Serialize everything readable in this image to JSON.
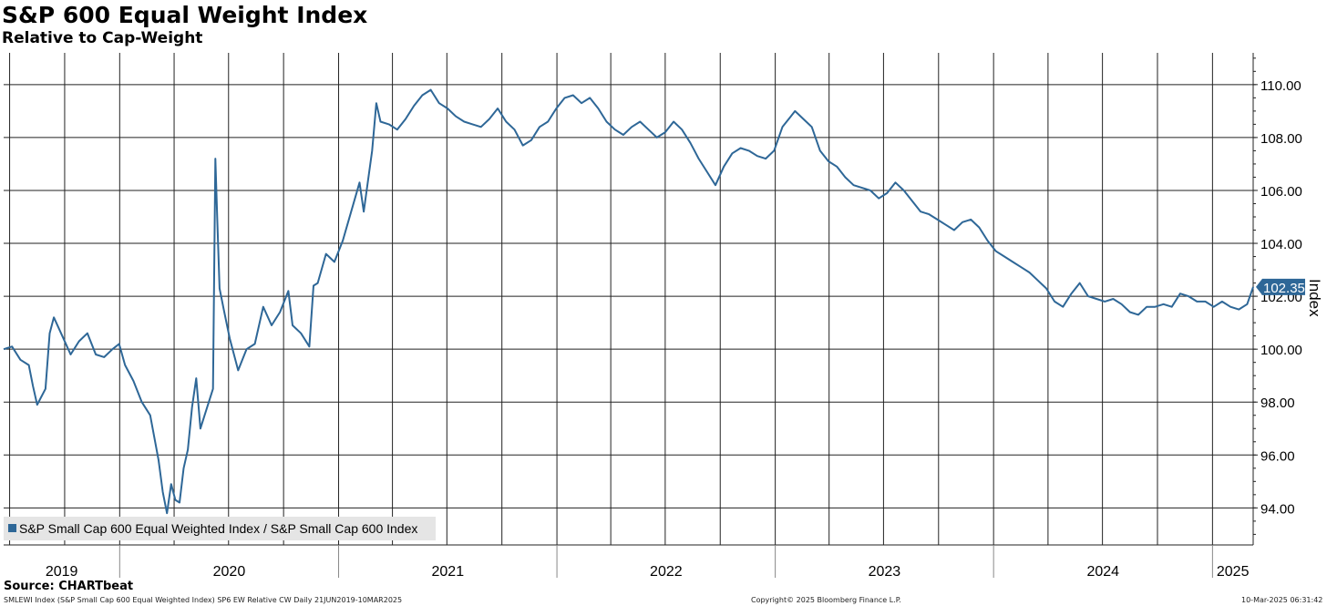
{
  "title": "S&P 600 Equal Weight Index",
  "subtitle": "Relative to Cap-Weight",
  "source": "Source: CHARTbeat",
  "footer": {
    "left": "SMLEWI Index (S&P Small Cap 600 Equal Weighted Index) SP6 EW Relative CW  Daily 21JUN2019-10MAR2025",
    "center": "Copyright© 2025 Bloomberg Finance L.P.",
    "right": "10-Mar-2025 06:31:42"
  },
  "colors": {
    "line": "#2e6797",
    "grid": "#222222",
    "badge": "#2e6797",
    "legend_bg": "#e5e5e5"
  },
  "chart_data": {
    "type": "line",
    "title": "S&P 600 Equal Weight Index",
    "subtitle": "Relative to Cap-Weight",
    "ylabel": "Index",
    "ylim": [
      92.6,
      111.2
    ],
    "xlim": [
      "2019-06-21",
      "2025-03-10"
    ],
    "y_ticks": [
      "94.00",
      "96.00",
      "98.00",
      "100.00",
      "102.00",
      "104.00",
      "106.00",
      "108.00",
      "110.00"
    ],
    "x_year_labels": [
      "2019",
      "2020",
      "2021",
      "2022",
      "2023",
      "2024",
      "2025"
    ],
    "grid": true,
    "legend_position": "bottom-left",
    "last_value_label": "102.35",
    "series": [
      {
        "name": "S&P Small Cap 600 Equal Weighted Index / S&P Small Cap 600 Index",
        "points": [
          [
            "2019-06-21",
            100.0
          ],
          [
            "2019-07-05",
            100.1
          ],
          [
            "2019-07-19",
            99.6
          ],
          [
            "2019-08-02",
            99.4
          ],
          [
            "2019-08-09",
            98.6
          ],
          [
            "2019-08-16",
            97.9
          ],
          [
            "2019-08-30",
            98.5
          ],
          [
            "2019-09-06",
            100.6
          ],
          [
            "2019-09-13",
            101.2
          ],
          [
            "2019-09-27",
            100.5
          ],
          [
            "2019-10-11",
            99.8
          ],
          [
            "2019-10-25",
            100.3
          ],
          [
            "2019-11-08",
            100.6
          ],
          [
            "2019-11-22",
            99.8
          ],
          [
            "2019-12-06",
            99.7
          ],
          [
            "2019-12-20",
            100.0
          ],
          [
            "2019-12-31",
            100.2
          ],
          [
            "2020-01-10",
            99.4
          ],
          [
            "2020-01-24",
            98.8
          ],
          [
            "2020-02-07",
            98.0
          ],
          [
            "2020-02-21",
            97.5
          ],
          [
            "2020-03-06",
            95.8
          ],
          [
            "2020-03-13",
            94.6
          ],
          [
            "2020-03-20",
            93.8
          ],
          [
            "2020-03-27",
            94.9
          ],
          [
            "2020-04-03",
            94.3
          ],
          [
            "2020-04-10",
            94.2
          ],
          [
            "2020-04-17",
            95.5
          ],
          [
            "2020-04-24",
            96.2
          ],
          [
            "2020-05-01",
            97.8
          ],
          [
            "2020-05-08",
            98.9
          ],
          [
            "2020-05-15",
            97.0
          ],
          [
            "2020-05-22",
            97.5
          ],
          [
            "2020-05-29",
            98.0
          ],
          [
            "2020-06-05",
            98.5
          ],
          [
            "2020-06-09",
            107.2
          ],
          [
            "2020-06-12",
            105.0
          ],
          [
            "2020-06-16",
            102.3
          ],
          [
            "2020-06-23",
            101.5
          ],
          [
            "2020-07-03",
            100.4
          ],
          [
            "2020-07-17",
            99.2
          ],
          [
            "2020-07-31",
            100.0
          ],
          [
            "2020-08-14",
            100.2
          ],
          [
            "2020-08-28",
            101.6
          ],
          [
            "2020-09-11",
            100.9
          ],
          [
            "2020-09-25",
            101.4
          ],
          [
            "2020-10-09",
            102.2
          ],
          [
            "2020-10-16",
            100.9
          ],
          [
            "2020-10-30",
            100.6
          ],
          [
            "2020-11-13",
            100.1
          ],
          [
            "2020-11-20",
            102.4
          ],
          [
            "2020-11-27",
            102.5
          ],
          [
            "2020-12-11",
            103.6
          ],
          [
            "2020-12-25",
            103.3
          ],
          [
            "2021-01-08",
            104.1
          ],
          [
            "2021-01-22",
            105.2
          ],
          [
            "2021-02-05",
            106.3
          ],
          [
            "2021-02-12",
            105.2
          ],
          [
            "2021-02-26",
            107.5
          ],
          [
            "2021-03-05",
            109.3
          ],
          [
            "2021-03-12",
            108.6
          ],
          [
            "2021-03-26",
            108.5
          ],
          [
            "2021-04-09",
            108.3
          ],
          [
            "2021-04-23",
            108.7
          ],
          [
            "2021-05-07",
            109.2
          ],
          [
            "2021-05-21",
            109.6
          ],
          [
            "2021-06-04",
            109.8
          ],
          [
            "2021-06-18",
            109.3
          ],
          [
            "2021-07-02",
            109.1
          ],
          [
            "2021-07-16",
            108.8
          ],
          [
            "2021-07-30",
            108.6
          ],
          [
            "2021-08-13",
            108.5
          ],
          [
            "2021-08-27",
            108.4
          ],
          [
            "2021-09-10",
            108.7
          ],
          [
            "2021-09-24",
            109.1
          ],
          [
            "2021-10-08",
            108.6
          ],
          [
            "2021-10-22",
            108.3
          ],
          [
            "2021-11-05",
            107.7
          ],
          [
            "2021-11-19",
            107.9
          ],
          [
            "2021-12-03",
            108.4
          ],
          [
            "2021-12-17",
            108.6
          ],
          [
            "2021-12-31",
            109.1
          ],
          [
            "2022-01-14",
            109.5
          ],
          [
            "2022-01-28",
            109.6
          ],
          [
            "2022-02-11",
            109.3
          ],
          [
            "2022-02-25",
            109.5
          ],
          [
            "2022-03-11",
            109.1
          ],
          [
            "2022-03-25",
            108.6
          ],
          [
            "2022-04-08",
            108.3
          ],
          [
            "2022-04-22",
            108.1
          ],
          [
            "2022-05-06",
            108.4
          ],
          [
            "2022-05-20",
            108.6
          ],
          [
            "2022-06-03",
            108.3
          ],
          [
            "2022-06-17",
            108.0
          ],
          [
            "2022-07-01",
            108.2
          ],
          [
            "2022-07-15",
            108.6
          ],
          [
            "2022-07-29",
            108.3
          ],
          [
            "2022-08-12",
            107.8
          ],
          [
            "2022-08-26",
            107.2
          ],
          [
            "2022-09-09",
            106.7
          ],
          [
            "2022-09-23",
            106.2
          ],
          [
            "2022-10-07",
            106.9
          ],
          [
            "2022-10-21",
            107.4
          ],
          [
            "2022-11-04",
            107.6
          ],
          [
            "2022-11-18",
            107.5
          ],
          [
            "2022-12-02",
            107.3
          ],
          [
            "2022-12-16",
            107.2
          ],
          [
            "2022-12-30",
            107.5
          ],
          [
            "2023-01-13",
            108.4
          ],
          [
            "2023-01-27",
            108.8
          ],
          [
            "2023-02-03",
            109.0
          ],
          [
            "2023-02-17",
            108.7
          ],
          [
            "2023-03-03",
            108.4
          ],
          [
            "2023-03-17",
            107.5
          ],
          [
            "2023-03-31",
            107.1
          ],
          [
            "2023-04-14",
            106.9
          ],
          [
            "2023-04-28",
            106.5
          ],
          [
            "2023-05-12",
            106.2
          ],
          [
            "2023-05-26",
            106.1
          ],
          [
            "2023-06-09",
            106.0
          ],
          [
            "2023-06-23",
            105.7
          ],
          [
            "2023-07-07",
            105.9
          ],
          [
            "2023-07-21",
            106.3
          ],
          [
            "2023-08-04",
            106.0
          ],
          [
            "2023-08-18",
            105.6
          ],
          [
            "2023-09-01",
            105.2
          ],
          [
            "2023-09-15",
            105.1
          ],
          [
            "2023-09-29",
            104.9
          ],
          [
            "2023-10-13",
            104.7
          ],
          [
            "2023-10-27",
            104.5
          ],
          [
            "2023-11-10",
            104.8
          ],
          [
            "2023-11-24",
            104.9
          ],
          [
            "2023-12-08",
            104.6
          ],
          [
            "2023-12-22",
            104.1
          ],
          [
            "2024-01-05",
            103.7
          ],
          [
            "2024-01-19",
            103.5
          ],
          [
            "2024-02-02",
            103.3
          ],
          [
            "2024-02-16",
            103.1
          ],
          [
            "2024-03-01",
            102.9
          ],
          [
            "2024-03-15",
            102.6
          ],
          [
            "2024-03-29",
            102.3
          ],
          [
            "2024-04-12",
            101.8
          ],
          [
            "2024-04-26",
            101.6
          ],
          [
            "2024-05-10",
            102.1
          ],
          [
            "2024-05-24",
            102.5
          ],
          [
            "2024-06-07",
            102.0
          ],
          [
            "2024-06-21",
            101.9
          ],
          [
            "2024-07-05",
            101.8
          ],
          [
            "2024-07-19",
            101.9
          ],
          [
            "2024-08-02",
            101.7
          ],
          [
            "2024-08-16",
            101.4
          ],
          [
            "2024-08-30",
            101.3
          ],
          [
            "2024-09-13",
            101.6
          ],
          [
            "2024-09-27",
            101.6
          ],
          [
            "2024-10-11",
            101.7
          ],
          [
            "2024-10-25",
            101.6
          ],
          [
            "2024-11-08",
            102.1
          ],
          [
            "2024-11-22",
            102.0
          ],
          [
            "2024-12-06",
            101.8
          ],
          [
            "2024-12-20",
            101.8
          ],
          [
            "2025-01-03",
            101.6
          ],
          [
            "2025-01-17",
            101.8
          ],
          [
            "2025-01-31",
            101.6
          ],
          [
            "2025-02-14",
            101.5
          ],
          [
            "2025-02-28",
            101.7
          ],
          [
            "2025-03-10",
            102.35
          ]
        ]
      }
    ]
  }
}
